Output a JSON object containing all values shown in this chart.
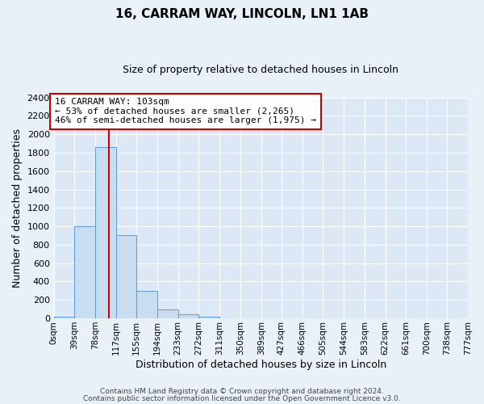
{
  "title": "16, CARRAM WAY, LINCOLN, LN1 1AB",
  "subtitle": "Size of property relative to detached houses in Lincoln",
  "xlabel": "Distribution of detached houses by size in Lincoln",
  "ylabel": "Number of detached properties",
  "bin_edges": [
    0,
    39,
    78,
    117,
    155,
    194,
    233,
    272,
    311,
    350,
    389,
    427,
    466,
    505,
    544,
    583,
    622,
    661,
    700,
    738,
    777
  ],
  "bin_labels": [
    "0sqm",
    "39sqm",
    "78sqm",
    "117sqm",
    "155sqm",
    "194sqm",
    "233sqm",
    "272sqm",
    "311sqm",
    "350sqm",
    "389sqm",
    "427sqm",
    "466sqm",
    "505sqm",
    "544sqm",
    "583sqm",
    "622sqm",
    "661sqm",
    "700sqm",
    "738sqm",
    "777sqm"
  ],
  "bar_heights": [
    20,
    1005,
    1865,
    905,
    300,
    100,
    45,
    20,
    0,
    0,
    0,
    0,
    0,
    0,
    0,
    0,
    0,
    0,
    0,
    0
  ],
  "bar_color": "#c9ddf0",
  "bar_edge_color": "#5b9bd5",
  "ylim": [
    0,
    2400
  ],
  "yticks": [
    0,
    200,
    400,
    600,
    800,
    1000,
    1200,
    1400,
    1600,
    1800,
    2000,
    2200,
    2400
  ],
  "property_line_x": 103,
  "property_line_color": "#cc0000",
  "annotation_title": "16 CARRAM WAY: 103sqm",
  "annotation_line1": "← 53% of detached houses are smaller (2,265)",
  "annotation_line2": "46% of semi-detached houses are larger (1,975) →",
  "background_color": "#e8f0f8",
  "plot_bg_color": "#dce8f5",
  "grid_color": "#ffffff",
  "footer_line1": "Contains HM Land Registry data © Crown copyright and database right 2024.",
  "footer_line2": "Contains public sector information licensed under the Open Government Licence v3.0."
}
